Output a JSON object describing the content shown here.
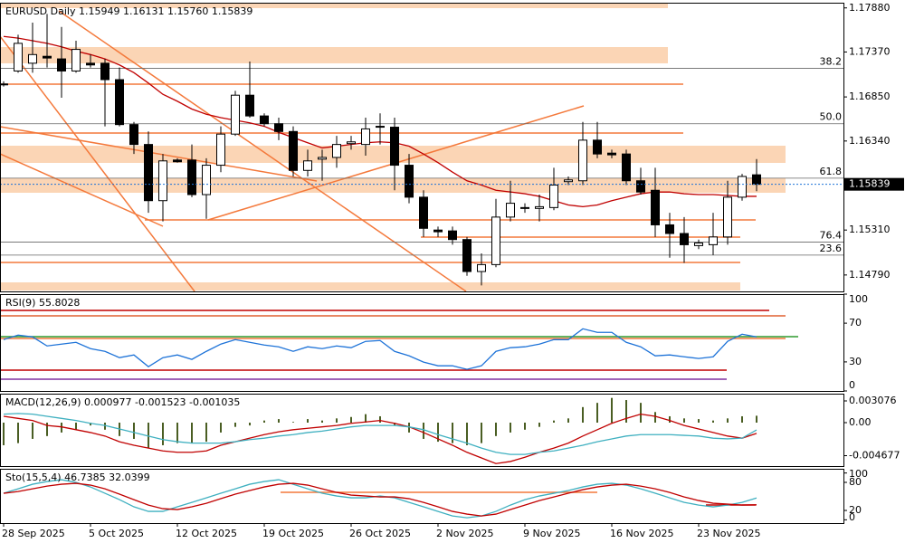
{
  "chart_data": [
    {
      "type": "candlestick",
      "title": "EURUSD Daily  1.15949 1.16131 1.15760 1.15839",
      "categories": [
        "28 Sep 2025",
        null,
        null,
        null,
        null,
        null,
        "5 Oct 2025",
        null,
        null,
        null,
        null,
        null,
        "12 Oct 2025",
        null,
        null,
        null,
        null,
        null,
        "19 Oct 2025",
        null,
        null,
        null,
        null,
        null,
        "26 Oct 2025",
        null,
        null,
        null,
        null,
        null,
        "2 Nov 2025",
        null,
        null,
        null,
        null,
        null,
        "9 Nov 2025",
        null,
        null,
        null,
        null,
        null,
        "16 Nov 2025",
        null,
        null,
        null,
        null,
        null,
        "23 Nov 2025",
        null,
        null,
        null,
        null
      ],
      "open": [
        1.17,
        1.1715,
        1.1724,
        1.1732,
        1.1729,
        1.1715,
        1.1724,
        1.1724,
        1.1705,
        1.1653,
        1.163,
        1.1565,
        1.1612,
        1.1612,
        1.1572,
        1.1606,
        1.1642,
        1.1687,
        1.1663,
        1.1654,
        1.1645,
        1.16,
        1.1613,
        1.1615,
        1.1631,
        1.163,
        1.165,
        1.165,
        1.1606,
        1.1569,
        1.1531,
        1.153,
        1.152,
        1.1483,
        1.1491,
        1.1546,
        1.1556,
        1.1556,
        1.1557,
        1.1587,
        1.1588,
        1.1635,
        1.162,
        1.1619,
        1.1588,
        1.1577,
        1.1537,
        1.1527,
        1.1513,
        1.1514,
        1.1523,
        1.1569,
        1.15949
      ],
      "high": [
        1.1703,
        1.1757,
        1.1771,
        1.1781,
        1.1766,
        1.175,
        1.1734,
        1.1729,
        1.1719,
        1.1656,
        1.1645,
        1.1619,
        1.1614,
        1.163,
        1.1614,
        1.1651,
        1.1692,
        1.1726,
        1.1666,
        1.1661,
        1.1651,
        1.1624,
        1.1624,
        1.164,
        1.164,
        1.1661,
        1.1666,
        1.1661,
        1.1619,
        1.1577,
        1.1535,
        1.1535,
        1.1523,
        1.1504,
        1.1567,
        1.1588,
        1.1562,
        1.1572,
        1.1603,
        1.1593,
        1.1656,
        1.1656,
        1.1624,
        1.1624,
        1.1603,
        1.1603,
        1.1551,
        1.1546,
        1.152,
        1.1551,
        1.1588,
        1.1596,
        1.16131
      ],
      "low": [
        1.1697,
        1.1713,
        1.1713,
        1.1719,
        1.1684,
        1.1713,
        1.1719,
        1.1651,
        1.1651,
        1.1619,
        1.1551,
        1.1541,
        1.1609,
        1.1569,
        1.1544,
        1.1598,
        1.164,
        1.1661,
        1.1651,
        1.1635,
        1.1593,
        1.1593,
        1.1588,
        1.1603,
        1.1624,
        1.1617,
        1.163,
        1.1577,
        1.1562,
        1.1523,
        1.1523,
        1.1514,
        1.1478,
        1.1467,
        1.1488,
        1.1541,
        1.1551,
        1.1541,
        1.1554,
        1.1583,
        1.1583,
        1.1614,
        1.1614,
        1.1583,
        1.1572,
        1.1523,
        1.1499,
        1.1493,
        1.1509,
        1.1502,
        1.1514,
        1.1565,
        1.1576
      ],
      "close": [
        1.17,
        1.1747,
        1.1734,
        1.173,
        1.1715,
        1.174,
        1.1722,
        1.1705,
        1.1653,
        1.163,
        1.1565,
        1.1611,
        1.161,
        1.1572,
        1.1606,
        1.1642,
        1.1687,
        1.1663,
        1.1654,
        1.1645,
        1.16,
        1.1611,
        1.1615,
        1.163,
        1.1633,
        1.1648,
        1.1651,
        1.1606,
        1.1569,
        1.1533,
        1.1529,
        1.152,
        1.1483,
        1.1491,
        1.1546,
        1.1562,
        1.1557,
        1.1558,
        1.1583,
        1.1589,
        1.1635,
        1.1619,
        1.1618,
        1.1588,
        1.1575,
        1.1537,
        1.1527,
        1.1514,
        1.1516,
        1.1523,
        1.1569,
        1.1593,
        1.15839
      ],
      "up_color": "#ffffff",
      "down_color": "#000000",
      "moving_average": {
        "color": "#c00000",
        "values": [
          1.1755,
          1.1753,
          1.175,
          1.1747,
          1.1743,
          1.1738,
          1.1734,
          1.1729,
          1.1722,
          1.1713,
          1.1701,
          1.1688,
          1.168,
          1.1671,
          1.1665,
          1.1661,
          1.1658,
          1.1655,
          1.1651,
          1.1644,
          1.1638,
          1.1632,
          1.1626,
          1.1628,
          1.163,
          1.1632,
          1.1633,
          1.1632,
          1.1628,
          1.1619,
          1.1609,
          1.1598,
          1.1588,
          1.1583,
          1.1577,
          1.1575,
          1.1573,
          1.157,
          1.1565,
          1.156,
          1.1558,
          1.156,
          1.1565,
          1.1569,
          1.1573,
          1.1575,
          1.1575,
          1.1573,
          1.1572,
          1.1572,
          1.1571,
          1.157,
          1.157
        ]
      },
      "ylim": [
        1.146,
        1.1794
      ],
      "yticks": [
        {
          "value": 1.1788,
          "label": "1.17880"
        },
        {
          "value": 1.1737,
          "label": "1.17370"
        },
        {
          "value": 1.1685,
          "label": "1.16850"
        },
        {
          "value": 1.1634,
          "label": "1.16340"
        },
        {
          "value": 1.1531,
          "label": "1.15310"
        },
        {
          "value": 1.1479,
          "label": "1.14790"
        }
      ],
      "last_price": {
        "value": 1.15839,
        "label": "1.15839",
        "color": "#1e73d8"
      },
      "fibonacci": [
        {
          "label": "38.2",
          "price": 1.1718
        },
        {
          "label": "50.0",
          "price": 1.1654
        },
        {
          "label": "61.8",
          "price": 1.1591
        },
        {
          "label": "76.4",
          "price": 1.1517
        },
        {
          "label": "23.6",
          "price": 1.1502
        }
      ]
    },
    {
      "type": "line",
      "title": "RSI(9) 55.8028",
      "ylim": [
        0,
        100
      ],
      "yticks": [
        100,
        70,
        30,
        0
      ],
      "series": [
        {
          "color": "#1e73d8",
          "values": [
            53.0,
            57.7,
            55.8,
            46.5,
            48.4,
            50.2,
            43.7,
            40.9,
            34.4,
            37.2,
            25.1,
            34.4,
            37.2,
            32.6,
            40.9,
            48.4,
            53.0,
            50.2,
            47.4,
            45.6,
            40.9,
            45.6,
            43.7,
            46.5,
            44.7,
            51.2,
            52.1,
            40.9,
            36.3,
            29.8,
            26.0,
            26.0,
            22.3,
            26.0,
            40.9,
            44.7,
            45.6,
            48.4,
            53.0,
            53.0,
            64.2,
            60.5,
            60.5,
            50.2,
            45.6,
            36.3,
            37.2,
            35.3,
            33.5,
            35.3,
            51.2,
            58.6,
            55.8028
          ]
        }
      ]
    },
    {
      "type": "macd",
      "title": "MACD(12,26,9) 0.000977 -0.001523 -0.001035",
      "ylim": [
        -0.00615,
        0.0041
      ],
      "yticks": [
        0.003076,
        {
          "value": 0,
          "label": "0.00"
        },
        -0.004677
      ],
      "histogram": {
        "color": "#4a5e23",
        "values": [
          -0.0032,
          -0.0029,
          -0.0023,
          -0.0019,
          -0.0014,
          -0.001,
          -0.0004,
          -0.001,
          -0.0019,
          -0.0023,
          -0.0036,
          -0.0032,
          -0.0029,
          -0.0029,
          -0.0027,
          -0.0014,
          -0.0006,
          -0.0004,
          0.0003,
          0.0005,
          0.0001,
          0.0005,
          0.0003,
          0.0006,
          0.0008,
          0.0012,
          0.0009,
          -0.0004,
          -0.0014,
          -0.0023,
          -0.0027,
          -0.0029,
          -0.0032,
          -0.0029,
          -0.0019,
          -0.0014,
          -0.001,
          -0.0006,
          0.0003,
          0.0006,
          0.0022,
          0.0028,
          0.0035,
          0.0032,
          0.0028,
          0.0015,
          0.0009,
          0.0006,
          0.0005,
          0.0003,
          0.0006,
          0.0009,
          0.000977
        ]
      },
      "series": [
        {
          "color": "#c00000",
          "values": [
            0.0009,
            0.0006,
            0.0003,
            -0.0004,
            -0.0006,
            -0.001,
            -0.0014,
            -0.0019,
            -0.0027,
            -0.0032,
            -0.0036,
            -0.004,
            -0.0042,
            -0.0042,
            -0.004,
            -0.0032,
            -0.0027,
            -0.0022,
            -0.0017,
            -0.0013,
            -0.001,
            -0.0008,
            -0.0006,
            -0.0004,
            -0.0001,
            0.0001,
            0.0003,
            -0.0001,
            -0.0006,
            -0.0014,
            -0.0023,
            -0.0032,
            -0.0042,
            -0.005,
            -0.0058,
            -0.0055,
            -0.0049,
            -0.0042,
            -0.0036,
            -0.0029,
            -0.0019,
            -0.001,
            -0.0001,
            0.0006,
            0.0012,
            0.0009,
            0.0003,
            -0.0004,
            -0.0009,
            -0.0014,
            -0.0019,
            -0.0022,
            -0.001523
          ]
        },
        {
          "color": "#3fb0c0",
          "values": [
            0.0012,
            0.0013,
            0.0012,
            0.0009,
            0.0006,
            0.0003,
            -0.0001,
            -0.0004,
            -0.0009,
            -0.0014,
            -0.0019,
            -0.0024,
            -0.0027,
            -0.0029,
            -0.0029,
            -0.0029,
            -0.0027,
            -0.0024,
            -0.0022,
            -0.0019,
            -0.0017,
            -0.0014,
            -0.0012,
            -0.0009,
            -0.0006,
            -0.0004,
            -0.0004,
            -0.0004,
            -0.0006,
            -0.001,
            -0.0017,
            -0.0023,
            -0.0029,
            -0.0036,
            -0.0042,
            -0.0045,
            -0.0045,
            -0.0042,
            -0.004,
            -0.0036,
            -0.0032,
            -0.0027,
            -0.0023,
            -0.0019,
            -0.0017,
            -0.0017,
            -0.0017,
            -0.0018,
            -0.0019,
            -0.0022,
            -0.0023,
            -0.0022,
            -0.001035
          ]
        }
      ]
    },
    {
      "type": "line",
      "title": "Sto(15,5,4) 46.7385 32.0399",
      "ylim": [
        -7,
        109
      ],
      "yticks": [
        100,
        80,
        20,
        0
      ],
      "series": [
        {
          "color": "#3fb0c0",
          "values": [
            56.7,
            66.3,
            76.0,
            81.8,
            85.7,
            79.9,
            70.2,
            56.7,
            43.1,
            27.7,
            18.0,
            18.0,
            27.7,
            37.3,
            47.0,
            56.7,
            66.3,
            76.0,
            81.8,
            85.7,
            76.0,
            66.3,
            56.7,
            50.9,
            47.0,
            47.0,
            50.9,
            47.0,
            37.3,
            27.7,
            18.0,
            8.3,
            4.4,
            8.3,
            18.0,
            31.5,
            43.1,
            50.9,
            56.7,
            62.5,
            70.2,
            76.0,
            77.9,
            74.1,
            66.3,
            56.7,
            47.0,
            37.3,
            31.5,
            27.7,
            31.5,
            37.3,
            46.7385
          ]
        },
        {
          "color": "#c00000",
          "values": [
            56.7,
            60.5,
            66.3,
            72.1,
            76.0,
            77.9,
            74.1,
            66.3,
            54.8,
            43.1,
            31.5,
            23.8,
            21.9,
            27.7,
            35.4,
            45.1,
            54.8,
            62.5,
            70.2,
            76.0,
            77.9,
            74.1,
            66.3,
            58.6,
            52.8,
            50.9,
            48.9,
            48.9,
            45.1,
            37.3,
            27.7,
            18.0,
            12.2,
            8.3,
            12.2,
            21.9,
            31.5,
            41.2,
            48.9,
            56.7,
            64.4,
            70.2,
            74.1,
            76.0,
            72.1,
            66.3,
            58.6,
            48.9,
            41.2,
            35.4,
            33.5,
            31.5,
            32.0399
          ]
        }
      ]
    }
  ]
}
